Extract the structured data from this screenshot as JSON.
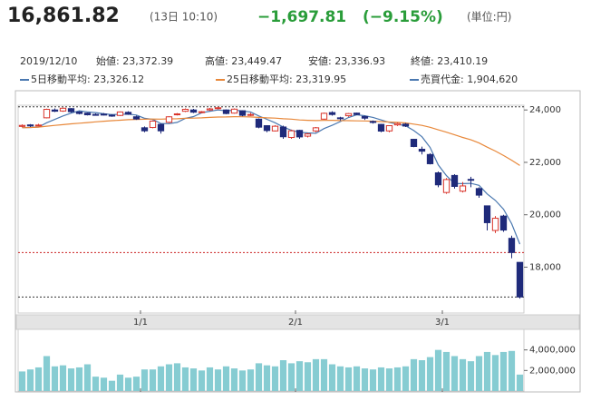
{
  "header": {
    "price": "16,861.82",
    "time": "(13日 10:10)",
    "change": "−1,697.81",
    "percent": "(−9.15%)",
    "unit": "(単位:円)"
  },
  "info": {
    "date": "2019/12/10",
    "items": [
      "始値: 23,372.39",
      "高値: 23,449.47",
      "安値: 23,336.93",
      "終値: 23,410.19"
    ]
  },
  "chart_data": {
    "type": "candlestick",
    "xlim": [
      -0.5,
      61.5
    ],
    "xticks": [
      {
        "value": 14.5,
        "label": "1/1"
      },
      {
        "value": 33.5,
        "label": "2/1"
      },
      {
        "value": 51.5,
        "label": "3/1"
      }
    ],
    "ylim": [
      16250,
      24180
    ],
    "yticks": [
      {
        "value": 18000,
        "label": "18,000"
      },
      {
        "value": 20000,
        "label": "20,000"
      },
      {
        "value": 22000,
        "label": "22,000"
      },
      {
        "value": 24000,
        "label": "24,000"
      }
    ],
    "up_color": "#d9342b",
    "down_color": "#1f2a7a",
    "open": [
      23372,
      23430,
      23400,
      23700,
      24000,
      23960,
      24050,
      23920,
      23880,
      23830,
      23840,
      23800,
      23790,
      23910,
      23740,
      23320,
      23330,
      23450,
      23530,
      23820,
      23950,
      24000,
      23900,
      24000,
      24070,
      24000,
      23880,
      23970,
      23800,
      23650,
      23400,
      23200,
      23350,
      22950,
      23220,
      23000,
      23200,
      23650,
      23900,
      23700,
      23780,
      23880,
      23750,
      23560,
      23450,
      23200,
      23430,
      23460,
      22880,
      22500,
      22300,
      21600,
      20850,
      21500,
      20900,
      21350,
      21000,
      20340,
      19400,
      19950,
      19100,
      18183
    ],
    "high": [
      23449,
      23460,
      23470,
      24050,
      24060,
      24090,
      24070,
      23950,
      23900,
      23870,
      23880,
      23840,
      23940,
      23950,
      23780,
      23370,
      23600,
      23480,
      23760,
      23880,
      24060,
      24040,
      23960,
      24080,
      24120,
      24020,
      24060,
      23990,
      23890,
      23680,
      23420,
      23420,
      23400,
      23250,
      23240,
      23120,
      23350,
      23900,
      23950,
      23740,
      23880,
      23900,
      23780,
      23600,
      23470,
      23420,
      23520,
      23500,
      22900,
      22600,
      22350,
      21650,
      21400,
      21550,
      21250,
      21450,
      21050,
      20350,
      19950,
      20000,
      19200,
      18183
    ],
    "low": [
      23337,
      23350,
      23380,
      23680,
      23920,
      23930,
      23900,
      23830,
      23790,
      23780,
      23790,
      23740,
      23770,
      23810,
      23620,
      23150,
      23300,
      23100,
      23500,
      23790,
      23920,
      23880,
      23880,
      23970,
      24030,
      23840,
      23860,
      23760,
      23770,
      23300,
      23150,
      23180,
      22900,
      22900,
      22900,
      22950,
      23150,
      23630,
      23780,
      23600,
      23740,
      23800,
      23620,
      23480,
      23150,
      23150,
      23390,
      23350,
      22580,
      22300,
      21920,
      21050,
      20800,
      21000,
      20850,
      21050,
      20650,
      19400,
      19300,
      19350,
      18340,
      16800
    ],
    "close": [
      23410,
      23391,
      23424,
      24023,
      23952,
      24066,
      23934,
      23864,
      23816,
      23821,
      23830,
      23782,
      23924,
      23837,
      23656,
      23204,
      23575,
      23204,
      23739,
      23850,
      24025,
      23916,
      23933,
      24041,
      24083,
      23864,
      24031,
      23795,
      23827,
      23343,
      23215,
      23379,
      22977,
      23205,
      22971,
      23084,
      23319,
      23873,
      23827,
      23685,
      23861,
      23827,
      23687,
      23523,
      23193,
      23400,
      23479,
      23386,
      22605,
      22426,
      21948,
      21142,
      21344,
      21082,
      21100,
      21329,
      20749,
      19698,
      19867,
      19416,
      18559,
      16862
    ],
    "series": [
      {
        "name": "5日移動平均: 23,326.12",
        "color": "#4a78b0",
        "values": [
          23326,
          23330,
          23350,
          23510,
          23640,
          23771,
          23880,
          23968,
          23926,
          23900,
          23853,
          23823,
          23835,
          23840,
          23806,
          23681,
          23639,
          23485,
          23476,
          23524,
          23679,
          23747,
          23893,
          23953,
          24000,
          23967,
          23994,
          23963,
          23920,
          23772,
          23642,
          23512,
          23348,
          23224,
          23149,
          23123,
          23111,
          23290,
          23415,
          23558,
          23713,
          23815,
          23777,
          23717,
          23618,
          23524,
          23456,
          23396,
          23213,
          22979,
          22569,
          21901,
          21493,
          21188,
          21189,
          21199,
          21121,
          20792,
          20549,
          20212,
          19658,
          18880
        ]
      },
      {
        "name": "25日移動平均: 23,319.95",
        "color": "#e8883a",
        "values": [
          23320,
          23330,
          23345,
          23380,
          23410,
          23440,
          23470,
          23495,
          23520,
          23545,
          23570,
          23590,
          23610,
          23630,
          23640,
          23645,
          23655,
          23650,
          23660,
          23665,
          23680,
          23690,
          23700,
          23715,
          23730,
          23735,
          23745,
          23740,
          23735,
          23715,
          23700,
          23690,
          23665,
          23650,
          23620,
          23605,
          23595,
          23600,
          23605,
          23595,
          23590,
          23585,
          23580,
          23570,
          23555,
          23540,
          23525,
          23505,
          23460,
          23410,
          23340,
          23240,
          23150,
          23050,
          22950,
          22860,
          22740,
          22580,
          22430,
          22260,
          22080,
          21880
        ]
      }
    ],
    "reference_lines": [
      {
        "value": 24120,
        "color": "#333333"
      },
      {
        "value": 18559,
        "color": "#cc2222"
      },
      {
        "value": 16862,
        "color": "#333333"
      }
    ],
    "volume": {
      "name": "売買代金: 1,904,620",
      "color": "#86ccd2",
      "legend_color": "#4a78b0",
      "ylim": [
        0,
        6000000
      ],
      "yticks": [
        {
          "value": 2000000,
          "label": "2,000,000"
        },
        {
          "value": 4000000,
          "label": "4,000,000"
        }
      ],
      "values": [
        1904620,
        2100000,
        2300000,
        3400000,
        2400000,
        2500000,
        2200000,
        2300000,
        2600000,
        1400000,
        1300000,
        1000000,
        1600000,
        1300000,
        1400000,
        2100000,
        2100000,
        2400000,
        2600000,
        2700000,
        2300000,
        2200000,
        2000000,
        2300000,
        2100000,
        2400000,
        2200000,
        2000000,
        2100000,
        2700000,
        2500000,
        2400000,
        3000000,
        2700000,
        2900000,
        2800000,
        3100000,
        3100000,
        2600000,
        2400000,
        2300000,
        2400000,
        2200000,
        2100000,
        2300000,
        2200000,
        2300000,
        2400000,
        3100000,
        3000000,
        3300000,
        4000000,
        3800000,
        3400000,
        3100000,
        2900000,
        3400000,
        3800000,
        3500000,
        3800000,
        3900000,
        1600000
      ]
    }
  }
}
